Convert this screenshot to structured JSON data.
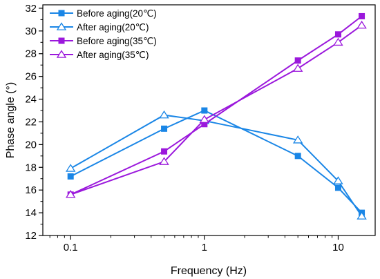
{
  "chart_data": {
    "type": "line",
    "title": "",
    "xlabel": "Frequency (Hz)",
    "ylabel": "Phase angle (°)",
    "xscale": "log",
    "xlim": [
      0.062,
      18.9
    ],
    "ylim": [
      12,
      32.3
    ],
    "xticks": [
      0.1,
      1,
      10
    ],
    "xtick_labels": [
      "0.1",
      "1",
      "10"
    ],
    "yticks": [
      12,
      14,
      16,
      18,
      20,
      22,
      24,
      26,
      28,
      30,
      32
    ],
    "ytick_labels": [
      "12",
      "14",
      "16",
      "18",
      "20",
      "22",
      "24",
      "26",
      "28",
      "30",
      "32"
    ],
    "grid": false,
    "legend_position": "top-left",
    "series": [
      {
        "name": "Before aging(20℃)",
        "color": "#1a86e6",
        "marker": "square-filled",
        "x": [
          0.1,
          0.5,
          1,
          5,
          10,
          15
        ],
        "y": [
          17.2,
          21.4,
          23.0,
          19.0,
          16.2,
          14.0
        ]
      },
      {
        "name": "After aging(20℃)",
        "color": "#1a86e6",
        "marker": "triangle-open",
        "x": [
          0.1,
          0.5,
          1,
          5,
          10,
          15
        ],
        "y": [
          17.9,
          22.6,
          22.1,
          20.4,
          16.8,
          13.7
        ]
      },
      {
        "name": "Before aging(35℃)",
        "color": "#9b18dc",
        "marker": "square-filled",
        "x": [
          0.1,
          0.5,
          1,
          5,
          10,
          15
        ],
        "y": [
          15.6,
          19.4,
          21.8,
          27.4,
          29.7,
          31.3
        ]
      },
      {
        "name": "After aging(35℃)",
        "color": "#9b18dc",
        "marker": "triangle-open",
        "x": [
          0.1,
          0.5,
          1,
          5,
          10,
          15
        ],
        "y": [
          15.6,
          18.5,
          22.2,
          26.7,
          29.0,
          30.5
        ]
      }
    ]
  }
}
